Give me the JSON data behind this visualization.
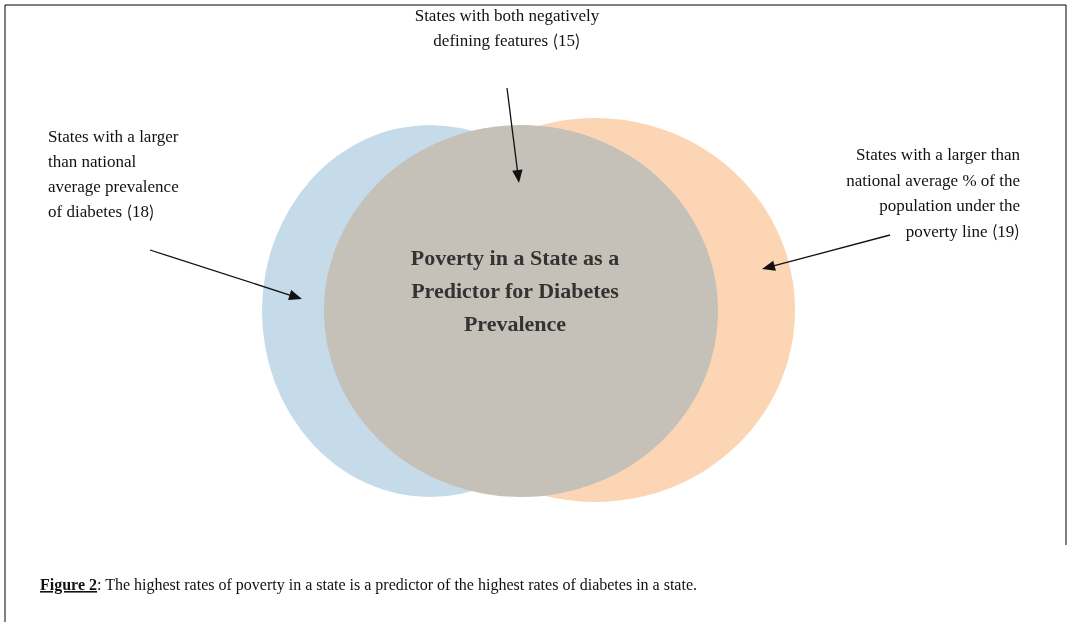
{
  "chart_data": {
    "type": "other",
    "title": "Poverty in a State as a Predictor for Diabetes Prevalence",
    "categories": [
      "States with a larger than national average prevalence of diabetes",
      "States with a larger than national average % of the population under the poverty line",
      "States with both negatively defining features"
    ],
    "values": [
      18,
      19,
      15
    ],
    "data_labels": true,
    "colors": [
      "#c6dbea",
      "#fcd5b4",
      "#c5c0b8"
    ],
    "annotations": [
      "Figure 2: The highest rates of poverty in a state is a predictor of the highest rates of diabetes in a state."
    ]
  }
}
